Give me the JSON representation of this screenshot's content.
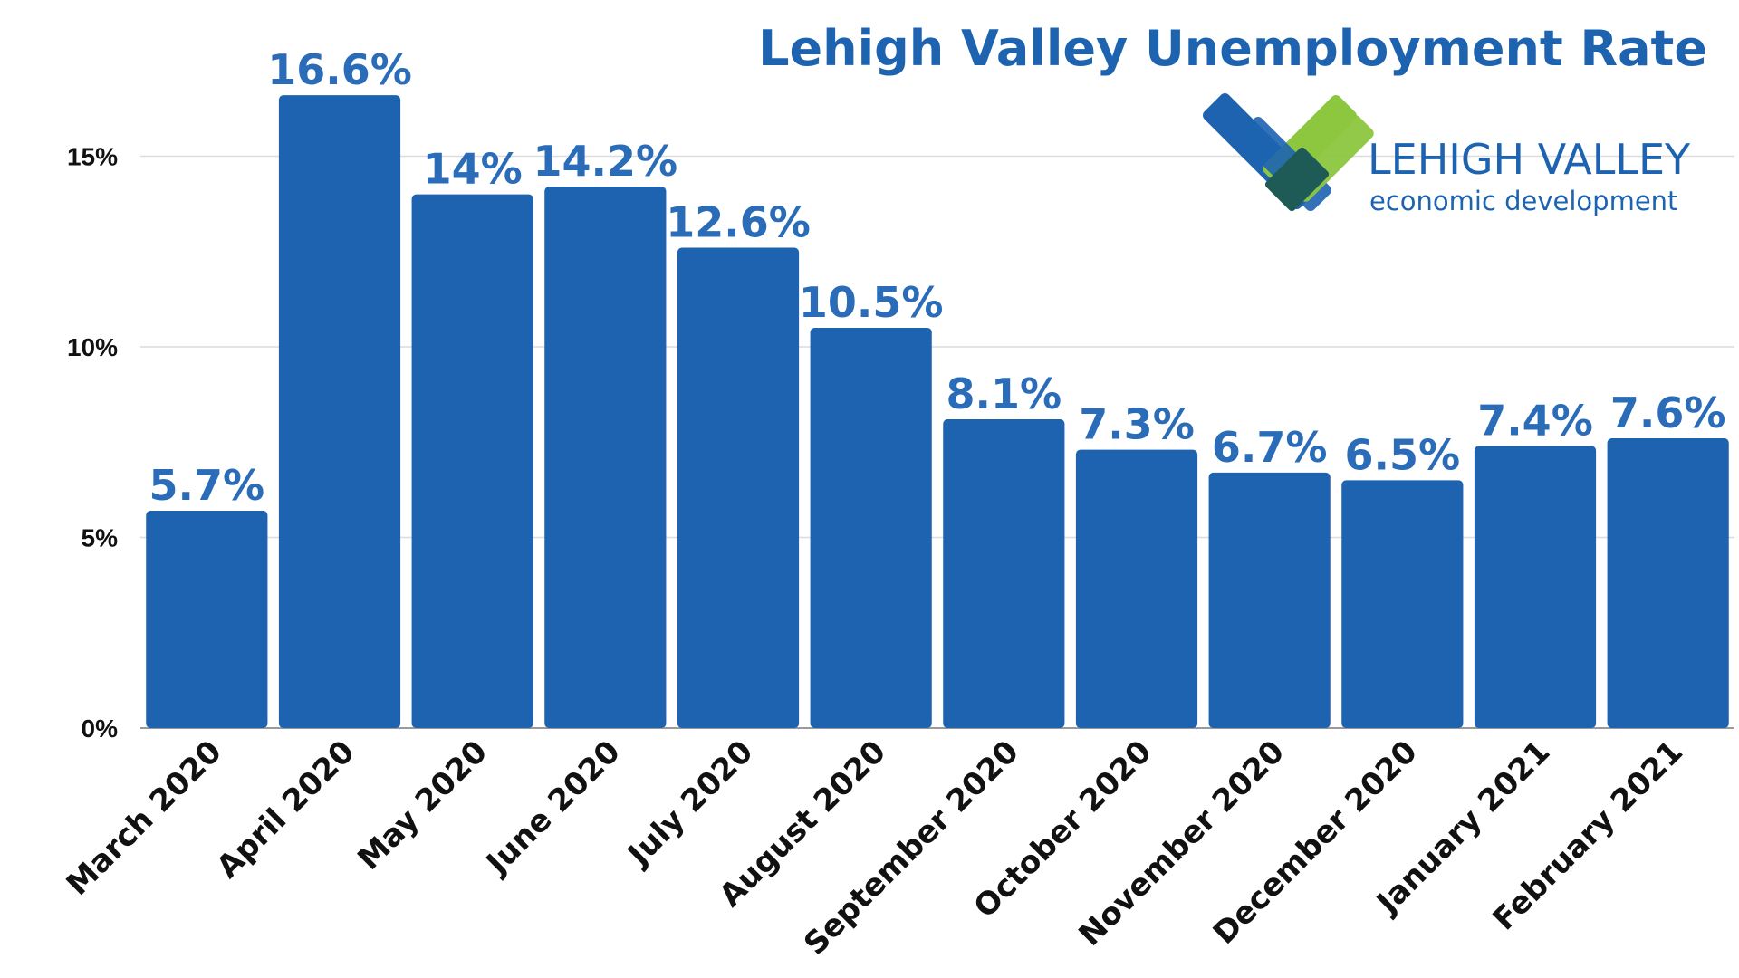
{
  "colors": {
    "bar": "#1d63b0",
    "label": "#2a6cb8",
    "title": "#1d63b0",
    "logo_blue": "#1d63b0",
    "logo_green": "#8dc63f",
    "logo_teal": "#1e5b57"
  },
  "logo": {
    "main_text": "LEHIGH VALLEY",
    "sub_text": "economic development"
  },
  "chart_data": {
    "type": "bar",
    "title": "Lehigh Valley Unemployment Rate",
    "xlabel": "",
    "ylabel": "",
    "ylim": [
      0,
      18
    ],
    "yticks": [
      0,
      5,
      10,
      15
    ],
    "ytick_labels": [
      "0%",
      "5%",
      "10%",
      "15%"
    ],
    "grid": true,
    "categories": [
      "March 2020",
      "April 2020",
      "May 2020",
      "June 2020",
      "July 2020",
      "August 2020",
      "September 2020",
      "October 2020",
      "November 2020",
      "December 2020",
      "January 2021",
      "February 2021"
    ],
    "values": [
      5.7,
      16.6,
      14,
      14.2,
      12.6,
      10.5,
      8.1,
      7.3,
      6.7,
      6.5,
      7.4,
      7.6
    ],
    "data_labels": [
      "5.7%",
      "16.6%",
      "14%",
      "14.2%",
      "12.6%",
      "10.5%",
      "8.1%",
      "7.3%",
      "6.7%",
      "6.5%",
      "7.4%",
      "7.6%"
    ]
  }
}
